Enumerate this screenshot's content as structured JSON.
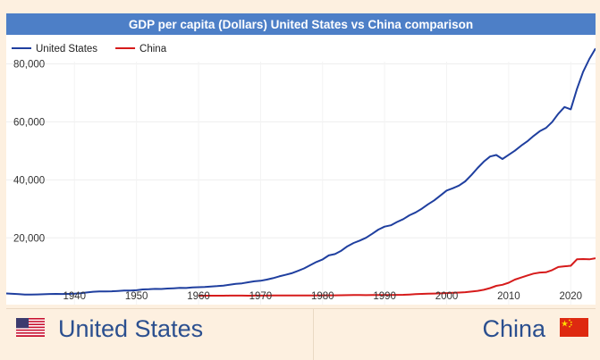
{
  "title": "GDP per capita (Dollars) United States vs China comparison",
  "footer": {
    "left_country": "United States",
    "right_country": "China"
  },
  "chart_data": {
    "type": "line",
    "title": "GDP per capita (Dollars) United States vs China comparison",
    "xlabel": "",
    "ylabel": "",
    "xlim": [
      1929,
      2024
    ],
    "ylim": [
      -3000,
      90000
    ],
    "x_ticks": [
      1940,
      1950,
      1960,
      1970,
      1980,
      1990,
      2000,
      2010,
      2020
    ],
    "x_tick_labels": [
      "1940",
      "1950",
      "1960",
      "1970",
      "1980",
      "1990",
      "2000",
      "2010",
      "2020"
    ],
    "y_ticks": [
      20000,
      40000,
      60000,
      80000
    ],
    "y_tick_labels": [
      "20,000",
      "40,000",
      "60,000",
      "80,000"
    ],
    "grid": true,
    "legend_position": "top-left",
    "series": [
      {
        "name": "United States",
        "color": "#1f3f9f",
        "x": [
          1929,
          1930,
          1931,
          1932,
          1933,
          1934,
          1935,
          1936,
          1937,
          1938,
          1939,
          1940,
          1941,
          1942,
          1943,
          1944,
          1945,
          1946,
          1947,
          1948,
          1949,
          1950,
          1951,
          1952,
          1953,
          1954,
          1955,
          1956,
          1957,
          1958,
          1959,
          1960,
          1961,
          1962,
          1963,
          1964,
          1965,
          1966,
          1967,
          1968,
          1969,
          1970,
          1971,
          1972,
          1973,
          1974,
          1975,
          1976,
          1977,
          1978,
          1979,
          1980,
          1981,
          1982,
          1983,
          1984,
          1985,
          1986,
          1987,
          1988,
          1989,
          1990,
          1991,
          1992,
          1993,
          1994,
          1995,
          1996,
          1997,
          1998,
          1999,
          2000,
          2001,
          2002,
          2003,
          2004,
          2005,
          2006,
          2007,
          2008,
          2009,
          2010,
          2011,
          2012,
          2013,
          2014,
          2015,
          2016,
          2017,
          2018,
          2019,
          2020,
          2021,
          2022,
          2023,
          2024
        ],
        "values": [
          850,
          740,
          620,
          470,
          450,
          520,
          580,
          650,
          710,
          660,
          700,
          760,
          950,
          1200,
          1440,
          1560,
          1570,
          1580,
          1720,
          1860,
          1830,
          1970,
          2220,
          2310,
          2430,
          2400,
          2540,
          2640,
          2750,
          2730,
          2910,
          3000,
          3060,
          3240,
          3370,
          3570,
          3830,
          4150,
          4330,
          4700,
          5030,
          5230,
          5610,
          6110,
          6740,
          7240,
          7820,
          8610,
          9470,
          10590,
          11690,
          12580,
          13980,
          14440,
          15560,
          17120,
          18240,
          19070,
          20040,
          21420,
          22860,
          23890,
          24340,
          25470,
          26460,
          27780,
          28780,
          30070,
          31570,
          32950,
          34640,
          36330,
          37130,
          38040,
          39500,
          41720,
          44120,
          46300,
          48050,
          48570,
          47190,
          48650,
          50070,
          51780,
          53290,
          55120,
          56760,
          57870,
          59910,
          62820,
          65120,
          64320,
          71320,
          77250,
          81700,
          85300
        ]
      },
      {
        "name": "China",
        "color": "#d61b1b",
        "x": [
          1960,
          1961,
          1962,
          1963,
          1964,
          1965,
          1966,
          1967,
          1968,
          1969,
          1970,
          1971,
          1972,
          1973,
          1974,
          1975,
          1976,
          1977,
          1978,
          1979,
          1980,
          1981,
          1982,
          1983,
          1984,
          1985,
          1986,
          1987,
          1988,
          1989,
          1990,
          1991,
          1992,
          1993,
          1994,
          1995,
          1996,
          1997,
          1998,
          1999,
          2000,
          2001,
          2002,
          2003,
          2004,
          2005,
          2006,
          2007,
          2008,
          2009,
          2010,
          2011,
          2012,
          2013,
          2014,
          2015,
          2016,
          2017,
          2018,
          2019,
          2020,
          2021,
          2022,
          2023,
          2024
        ],
        "values": [
          90,
          76,
          70,
          74,
          85,
          98,
          104,
          97,
          91,
          100,
          113,
          119,
          132,
          157,
          160,
          178,
          165,
          185,
          156,
          184,
          195,
          197,
          203,
          225,
          251,
          294,
          282,
          252,
          284,
          311,
          318,
          333,
          366,
          377,
          474,
          610,
          709,
          782,
          829,
          873,
          959,
          1053,
          1149,
          1289,
          1509,
          1753,
          2099,
          2694,
          3468,
          3832,
          4550,
          5618,
          6317,
          7051,
          7679,
          8067,
          8148,
          8879,
          9977,
          10217,
          10409,
          12618,
          12720,
          12614,
          12970
        ]
      }
    ]
  }
}
